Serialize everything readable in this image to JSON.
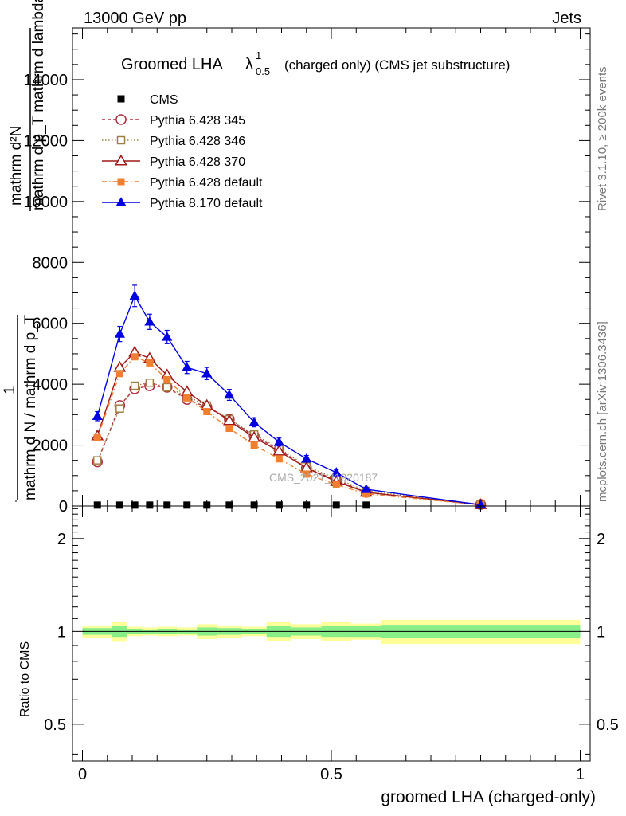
{
  "header": {
    "left": "13000 GeV pp",
    "right": "Jets"
  },
  "side_labels": {
    "rivet": "Rivet 3.1.10, ≥ 200k events",
    "mcplots": "mcplots.cern.ch [arXiv:1306.3436]"
  },
  "watermark": "CMS_2021_I1920187",
  "chart_data": [
    {
      "type": "line",
      "title": {
        "main": "Groomed LHA",
        "symbol": "λ",
        "sup": "1",
        "sub": "0.5",
        "rest": "(charged only) (CMS jet substructure)"
      },
      "ylabel": {
        "line1": "mathrm d²N",
        "line2": "mathrm d p_T mathrm d lambda",
        "prefix": "1",
        "line3": "mathrm d N / mathrm d p_T",
        "line4": "mathrm d p_T mathrm d lambda"
      },
      "xlim": [
        -0.02,
        1.02
      ],
      "ylim": [
        0,
        15700
      ],
      "yticks": [
        {
          "v": 0,
          "label": "0"
        },
        {
          "v": 2000,
          "label": "2000"
        },
        {
          "v": 4000,
          "label": "4000"
        },
        {
          "v": 6000,
          "label": "6000"
        },
        {
          "v": 8000,
          "label": "8000"
        },
        {
          "v": 10000,
          "label": "10000"
        },
        {
          "v": 12000,
          "label": "12000"
        },
        {
          "v": 14000,
          "label": "14000"
        }
      ],
      "legend_position": "top-left",
      "series": [
        {
          "name": "CMS",
          "color": "#000000",
          "marker": "square-filled",
          "dash": "none",
          "showline": false,
          "x": [
            0.03,
            0.075,
            0.105,
            0.135,
            0.17,
            0.21,
            0.25,
            0.295,
            0.345,
            0.395,
            0.45,
            0.51,
            0.57
          ],
          "y": [
            30,
            30,
            30,
            30,
            30,
            30,
            30,
            30,
            30,
            30,
            30,
            30,
            30
          ]
        },
        {
          "name": "Pythia 6.428 345",
          "color": "#b03040",
          "marker": "circle-open",
          "dash": "4,3",
          "showline": true,
          "x": [
            0.03,
            0.075,
            0.105,
            0.135,
            0.17,
            0.21,
            0.25,
            0.295,
            0.345,
            0.395,
            0.45,
            0.51,
            0.57,
            0.8
          ],
          "y": [
            1450,
            3300,
            3850,
            3950,
            3900,
            3500,
            3250,
            2850,
            2300,
            1850,
            1250,
            850,
            450,
            50
          ]
        },
        {
          "name": "Pythia 6.428 346",
          "color": "#a08040",
          "marker": "square-open",
          "dash": "1.5,2.5",
          "showline": true,
          "x": [
            0.03,
            0.075,
            0.105,
            0.135,
            0.17,
            0.21,
            0.25,
            0.295,
            0.345,
            0.395,
            0.45,
            0.51,
            0.57,
            0.8
          ],
          "y": [
            1500,
            3200,
            3950,
            4050,
            3900,
            3600,
            3300,
            2850,
            2350,
            1900,
            1300,
            900,
            500,
            50
          ]
        },
        {
          "name": "Pythia 6.428 370",
          "color": "#a01818",
          "marker": "triangle-open",
          "dash": "none",
          "showline": true,
          "x": [
            0.03,
            0.075,
            0.105,
            0.135,
            0.17,
            0.21,
            0.25,
            0.295,
            0.345,
            0.395,
            0.45,
            0.51,
            0.57,
            0.8
          ],
          "y": [
            2300,
            4550,
            5050,
            4850,
            4300,
            3750,
            3300,
            2800,
            2250,
            1800,
            1250,
            800,
            450,
            40
          ]
        },
        {
          "name": "Pythia 6.428 default",
          "color": "#f08030",
          "marker": "square-filled",
          "dash": "6,3,1.5,3",
          "showline": true,
          "x": [
            0.03,
            0.075,
            0.105,
            0.135,
            0.17,
            0.21,
            0.25,
            0.295,
            0.345,
            0.395,
            0.45,
            0.51,
            0.57,
            0.8
          ],
          "y": [
            2250,
            4350,
            4900,
            4700,
            4150,
            3550,
            3100,
            2550,
            2000,
            1550,
            1050,
            700,
            400,
            40
          ]
        },
        {
          "name": "Pythia 8.170 default",
          "color": "#0000e0",
          "marker": "triangle-filled",
          "dash": "none",
          "showline": true,
          "x": [
            0.03,
            0.075,
            0.105,
            0.135,
            0.17,
            0.21,
            0.25,
            0.295,
            0.345,
            0.395,
            0.45,
            0.51,
            0.57,
            0.8
          ],
          "y": [
            2950,
            5650,
            6900,
            6050,
            5550,
            4550,
            4350,
            3650,
            2750,
            2100,
            1550,
            1100,
            550,
            40
          ],
          "err": [
            150,
            250,
            350,
            250,
            220,
            200,
            200,
            180,
            150,
            130,
            110,
            90,
            60,
            20
          ]
        }
      ]
    },
    {
      "type": "area",
      "ylabel": "Ratio to CMS",
      "xlabel": "groomed LHA (charged-only)",
      "xlim": [
        -0.02,
        1.02
      ],
      "ylim": [
        0.38,
        2.55
      ],
      "yscale": "log",
      "yticks": [
        {
          "v": 0.5,
          "label": "0.5"
        },
        {
          "v": 1,
          "label": "1"
        },
        {
          "v": 2,
          "label": "2"
        }
      ],
      "xticks": [
        {
          "v": 0,
          "label": "0"
        },
        {
          "v": 0.5,
          "label": "0.5"
        },
        {
          "v": 1,
          "label": "1"
        }
      ],
      "band_colors": {
        "stat": "#88ee88",
        "total": "#ffff99"
      },
      "bins": [
        {
          "lo": 0.0,
          "hi": 0.06,
          "g": 0.025,
          "y": 0.045
        },
        {
          "lo": 0.06,
          "hi": 0.09,
          "g": 0.04,
          "y": 0.075
        },
        {
          "lo": 0.09,
          "hi": 0.12,
          "g": 0.02,
          "y": 0.035
        },
        {
          "lo": 0.12,
          "hi": 0.15,
          "g": 0.015,
          "y": 0.03
        },
        {
          "lo": 0.15,
          "hi": 0.19,
          "g": 0.02,
          "y": 0.035
        },
        {
          "lo": 0.19,
          "hi": 0.23,
          "g": 0.015,
          "y": 0.03
        },
        {
          "lo": 0.23,
          "hi": 0.27,
          "g": 0.03,
          "y": 0.055
        },
        {
          "lo": 0.27,
          "hi": 0.32,
          "g": 0.025,
          "y": 0.045
        },
        {
          "lo": 0.32,
          "hi": 0.37,
          "g": 0.02,
          "y": 0.035
        },
        {
          "lo": 0.37,
          "hi": 0.42,
          "g": 0.04,
          "y": 0.07
        },
        {
          "lo": 0.42,
          "hi": 0.48,
          "g": 0.03,
          "y": 0.055
        },
        {
          "lo": 0.48,
          "hi": 0.54,
          "g": 0.04,
          "y": 0.07
        },
        {
          "lo": 0.54,
          "hi": 0.6,
          "g": 0.04,
          "y": 0.06
        },
        {
          "lo": 0.6,
          "hi": 1.0,
          "g": 0.05,
          "y": 0.09
        }
      ]
    }
  ]
}
